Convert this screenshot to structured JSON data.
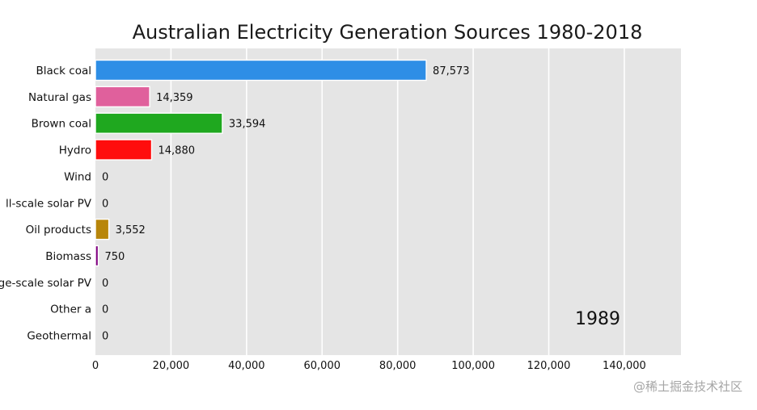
{
  "chart_data": {
    "type": "bar",
    "orientation": "horizontal",
    "title": "Australian Electricity Generation Sources 1980-2018",
    "xlabel": "",
    "ylabel": "",
    "xlim": [
      0,
      155000
    ],
    "x_ticks": [
      0,
      20000,
      40000,
      60000,
      80000,
      100000,
      120000,
      140000
    ],
    "x_tick_labels": [
      "0",
      "20,000",
      "40,000",
      "60,000",
      "80,000",
      "100,000",
      "120,000",
      "140,000"
    ],
    "grid": true,
    "categories": [
      "Black coal",
      "Natural gas",
      "Brown coal",
      "Hydro",
      "Wind",
      "Small-scale solar PV",
      "Oil products",
      "Biomass",
      "Large-scale solar PV",
      "Other a",
      "Geothermal"
    ],
    "visible_category_labels": [
      "Black coal",
      "Natural gas",
      "Brown coal",
      "Hydro",
      "Wind",
      "ll-scale solar PV",
      "Oil products",
      "Biomass",
      "ge-scale solar PV",
      "Other a",
      "Geothermal"
    ],
    "values": [
      87573,
      14359,
      33594,
      14880,
      0,
      0,
      3552,
      750,
      0,
      0,
      0
    ],
    "value_labels": [
      "87,573",
      "14,359",
      "33,594",
      "14,880",
      "0",
      "0",
      "3,552",
      "750",
      "0",
      "0",
      "0"
    ],
    "colors": [
      "#2e8ee6",
      "#e0609c",
      "#1fa81f",
      "#ff0d0d",
      "#d9d9d9",
      "#d9d9d9",
      "#b8860b",
      "#800080",
      "#d9d9d9",
      "#d9d9d9",
      "#d9d9d9"
    ],
    "year": "1989",
    "background_color": "#e5e5e5",
    "grid_color": "#ffffff"
  },
  "watermark": "@稀土掘金技术社区"
}
